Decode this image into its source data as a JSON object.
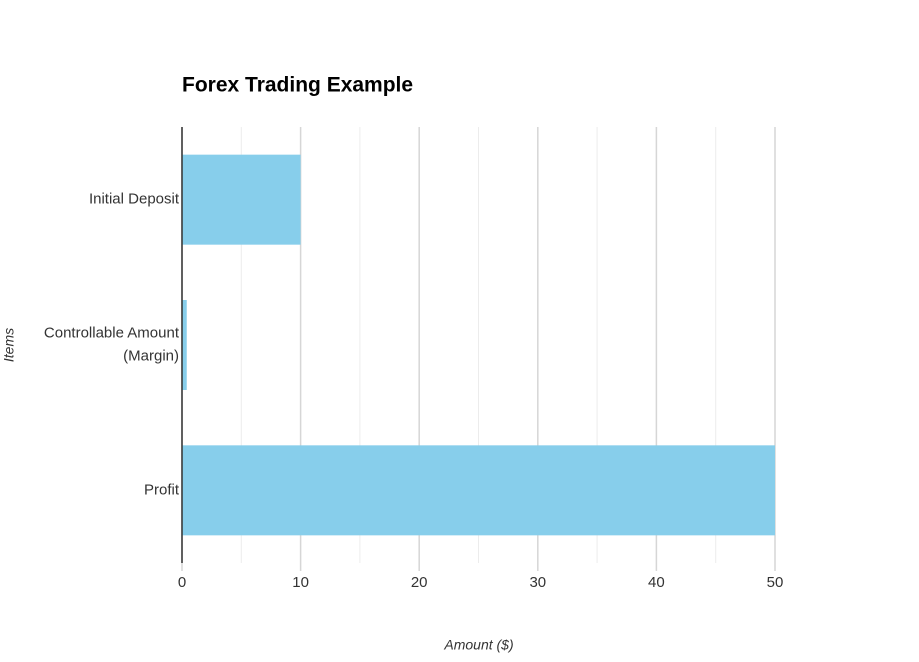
{
  "chart_data": {
    "type": "bar",
    "orientation": "horizontal",
    "title": "Forex Trading Example",
    "xlabel": "Amount ($)",
    "ylabel": "Items",
    "categories": [
      "Initial Deposit",
      "Controllable Amount\n(Margin)",
      "Profit"
    ],
    "values": [
      10,
      0.4,
      50
    ],
    "color": "#87ceeb",
    "xlim": [
      0,
      50
    ],
    "xticks": [
      0,
      10,
      20,
      30,
      40,
      50
    ],
    "xminorticks": [
      5,
      15,
      25,
      35,
      45
    ],
    "grid": true
  }
}
